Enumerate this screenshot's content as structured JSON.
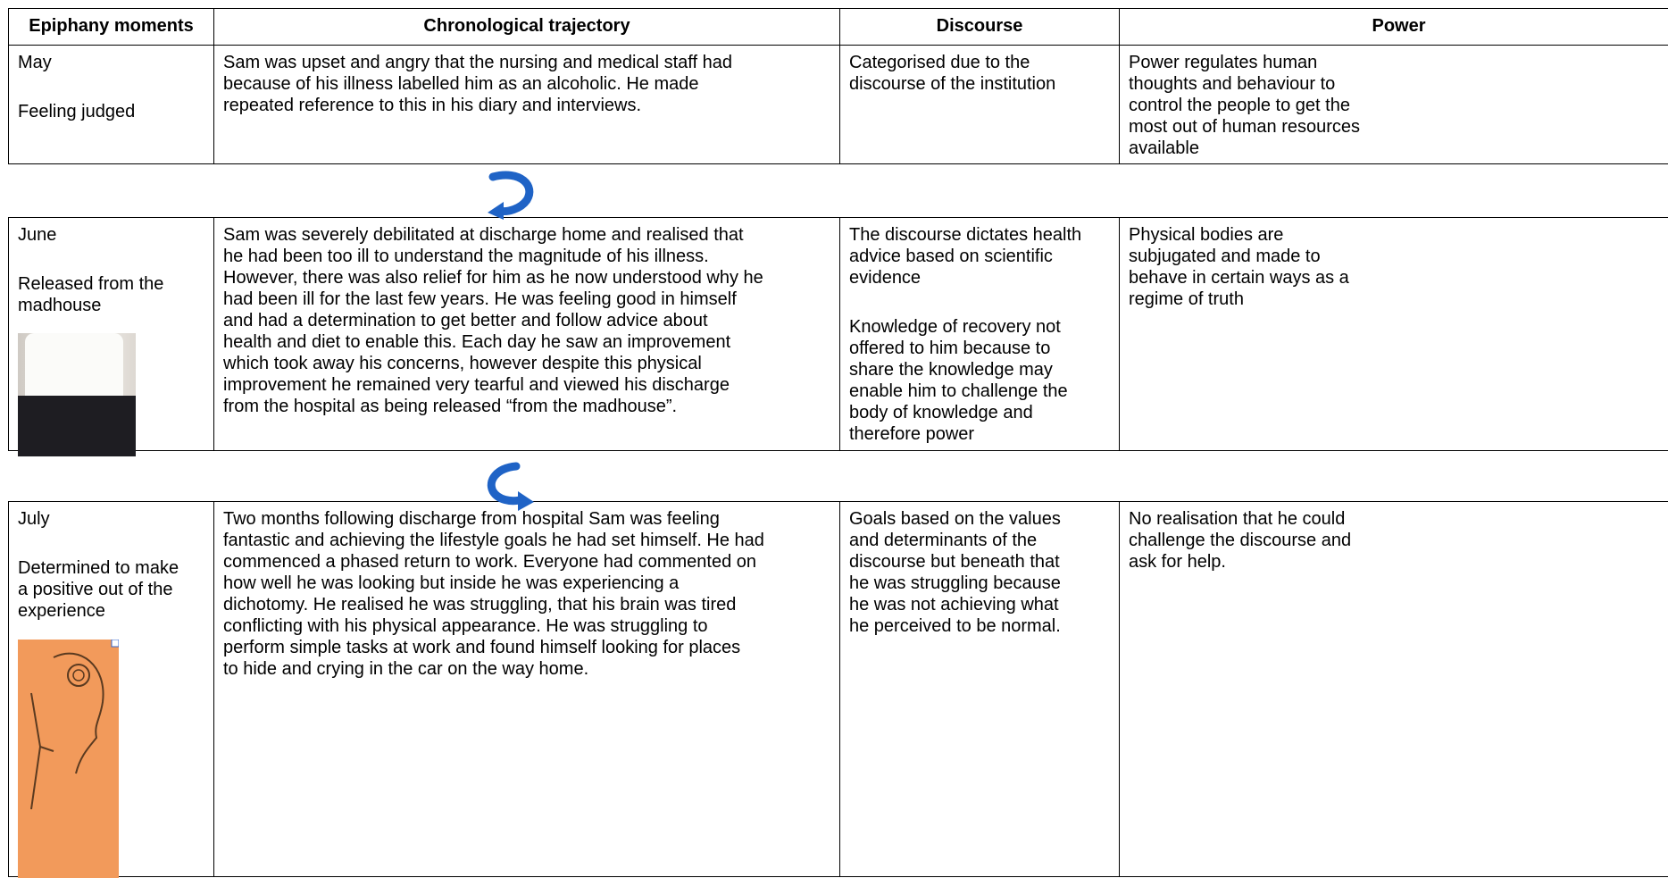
{
  "table": {
    "header": [
      "Epiphany moments",
      "Chronological trajectory",
      "Discourse",
      "Power"
    ],
    "rows": [
      {
        "cells": [
          [
            [
              "May"
            ],
            [
              "Feeling judged"
            ]
          ],
          [
            [
              "Sam was upset and angry that the nursing and medical staff had",
              "because of his illness labelled him as an alcoholic. He made",
              "repeated reference to this in his diary and interviews."
            ]
          ],
          [
            [
              "Categorised due to the",
              "discourse of the institution"
            ]
          ],
          [
            [
              "Power regulates human",
              "thoughts and behaviour to",
              "control the people to get the",
              "most out of human resources",
              "available"
            ]
          ]
        ]
      },
      {
        "cells": [
          [
            [
              "June"
            ],
            [
              "Released from the",
              "madhouse"
            ]
          ],
          [
            [
              "Sam was severely debilitated at discharge home and realised that",
              "he had been too ill to understand the magnitude of his illness.",
              "However, there was also relief for him as he now understood why he",
              "had been ill for the last few years. He was feeling good in himself",
              "and had a determination to get better and follow advice about",
              "health and diet to enable this. Each day he saw an improvement",
              "which took away his concerns, however despite this physical",
              "improvement he remained very tearful and viewed his discharge",
              "from the hospital as being released “from the madhouse”."
            ]
          ],
          [
            [
              "The discourse dictates health",
              "advice based on scientific",
              "evidence"
            ],
            [
              "Knowledge of recovery not",
              "offered to him because to",
              "share the knowledge may",
              "enable him to challenge the",
              "body of knowledge and",
              "therefore power"
            ]
          ],
          [
            [
              "Physical bodies are",
              "subjugated and made to",
              "behave in certain ways as a",
              "regime of truth"
            ]
          ]
        ]
      },
      {
        "cells": [
          [
            [
              "July"
            ],
            [
              "Determined to make",
              "a positive out of the",
              "experience"
            ]
          ],
          [
            [
              "Two months following discharge from hospital Sam was feeling",
              "fantastic and achieving the lifestyle goals he had set himself. He had",
              "commenced a phased return to work. Everyone had commented on",
              "how well he was looking but inside he was experiencing a",
              "dichotomy. He realised he was struggling, that his brain was tired",
              "conflicting with his physical appearance. He was struggling to",
              "perform simple tasks at work and found himself looking for places",
              "to hide and crying in the car on the way home."
            ]
          ],
          [
            [
              "Goals based on the values",
              "and determinants of the",
              "discourse but beneath that",
              "he was struggling because",
              "he was not achieving what",
              "he perceived to be normal."
            ]
          ],
          [
            [
              "No realisation that he could",
              "challenge the discourse and",
              "ask for help."
            ]
          ]
        ]
      }
    ]
  }
}
